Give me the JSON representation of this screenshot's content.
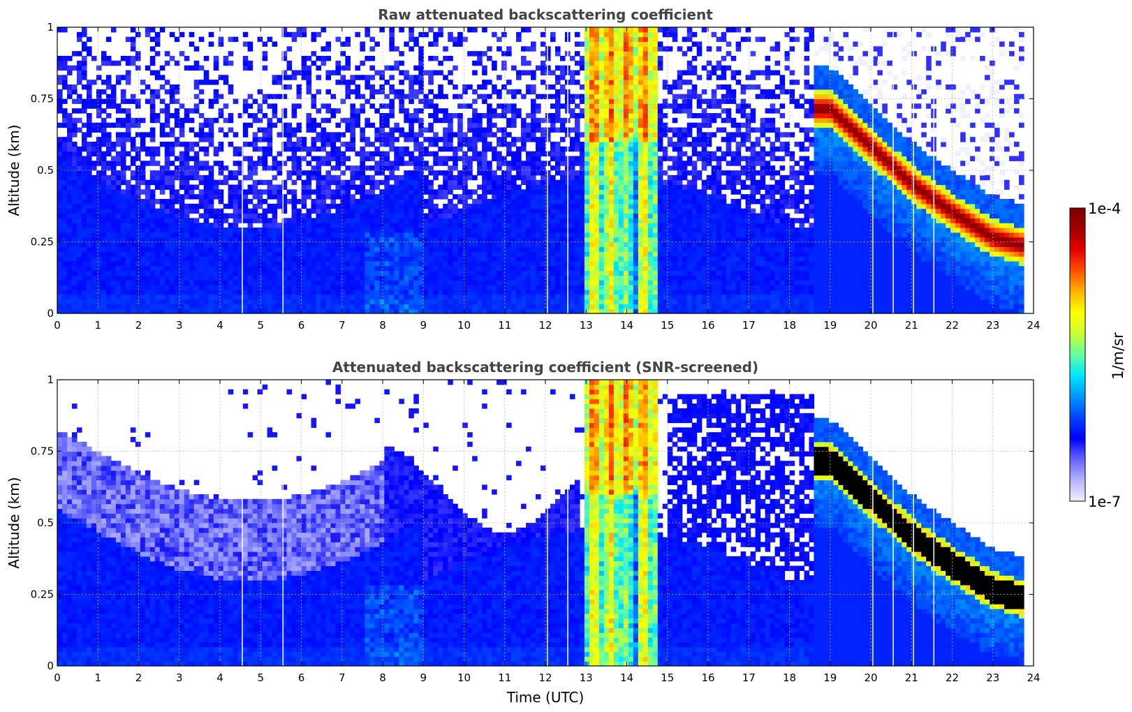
{
  "colors": {
    "colormap": [
      "#f0f0ff",
      "#b4b4ff",
      "#6464ff",
      "#0000ff",
      "#0046ff",
      "#0096ff",
      "#00e6ff",
      "#64ffa0",
      "#c8ff32",
      "#ffff00",
      "#ffb400",
      "#ff5000",
      "#e60000",
      "#a00000",
      "#800000"
    ],
    "saturated_screened": "#000000",
    "grid": "#bbbbbb"
  },
  "colorbar": {
    "max_label": "1e-4",
    "min_label": "1e-7",
    "unit_label": "1/m/sr"
  },
  "chart_data": [
    {
      "type": "heatmap",
      "title": "Raw attenuated backscattering coefficient",
      "xlabel": "",
      "ylabel": "Altitude (km)",
      "xlim": [
        0,
        24
      ],
      "ylim": [
        0,
        1
      ],
      "xticks": [
        "0",
        "1",
        "2",
        "3",
        "4",
        "5",
        "6",
        "7",
        "8",
        "9",
        "10",
        "11",
        "12",
        "13",
        "14",
        "15",
        "16",
        "17",
        "18",
        "19",
        "20",
        "21",
        "22",
        "23",
        "24"
      ],
      "yticks": [
        "0",
        "0.25",
        "0.5",
        "0.75",
        "1"
      ],
      "grid": true,
      "data_end_hour": 23.8,
      "cloud_band": {
        "start_hour": 13.0,
        "end_hour": 14.7
      },
      "aerosol_layer_top_km": {
        "hours": [
          19,
          20,
          21,
          22,
          23,
          23.8
        ],
        "top": [
          0.78,
          0.65,
          0.52,
          0.42,
          0.33,
          0.3
        ]
      },
      "gap_hours": [
        4.55,
        5.55,
        12.05,
        12.55,
        20.05,
        20.55,
        21.05,
        21.55
      ]
    },
    {
      "type": "heatmap",
      "title": "Attenuated backscattering coefficient (SNR-screened)",
      "xlabel": "Time (UTC)",
      "ylabel": "Altitude (km)",
      "xlim": [
        0,
        24
      ],
      "ylim": [
        0,
        1
      ],
      "xticks": [
        "0",
        "1",
        "2",
        "3",
        "4",
        "5",
        "6",
        "7",
        "8",
        "9",
        "10",
        "11",
        "12",
        "13",
        "14",
        "15",
        "16",
        "17",
        "18",
        "19",
        "20",
        "21",
        "22",
        "23",
        "24"
      ],
      "yticks": [
        "0",
        "0.25",
        "0.5",
        "0.75",
        "1"
      ],
      "grid": true,
      "data_end_hour": 23.8,
      "cloud_band": {
        "start_hour": 13.0,
        "end_hour": 14.7
      },
      "aerosol_layer_top_km": {
        "hours": [
          19,
          20,
          21,
          22,
          23,
          23.8
        ],
        "top": [
          0.78,
          0.65,
          0.52,
          0.42,
          0.33,
          0.3
        ]
      },
      "gap_hours": [
        4.55,
        5.55,
        12.05,
        12.55,
        20.05,
        20.55,
        21.05,
        21.55
      ]
    }
  ]
}
